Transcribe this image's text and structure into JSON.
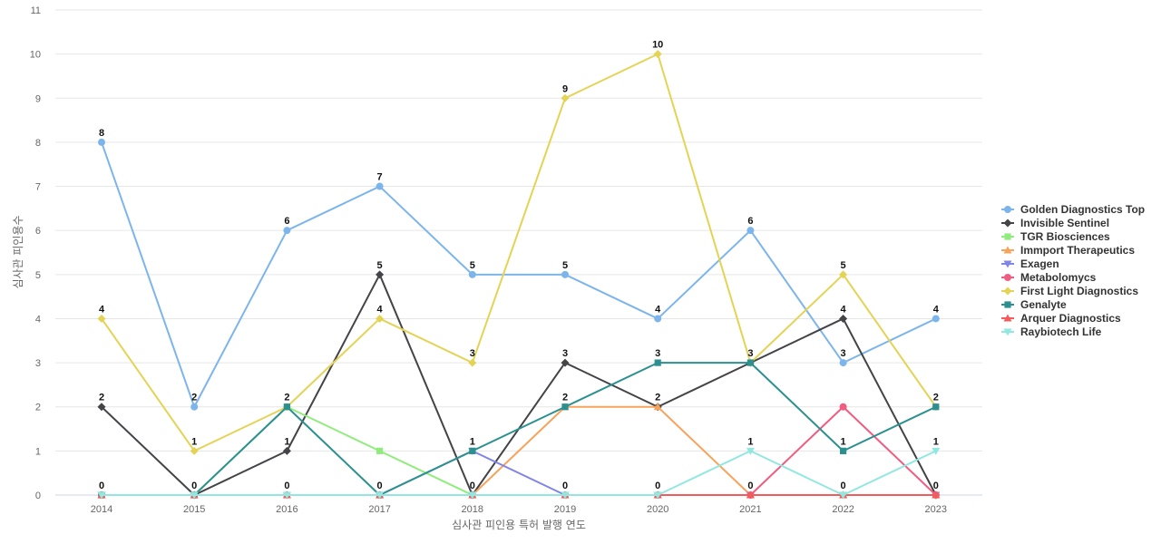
{
  "chart_data": {
    "type": "line",
    "xlabel": "심사관 피인용 특허 발행 연도",
    "ylabel": "심사관 피인용수",
    "x": [
      "2014",
      "2015",
      "2016",
      "2017",
      "2018",
      "2019",
      "2020",
      "2021",
      "2022",
      "2023"
    ],
    "ylim": [
      0,
      11
    ],
    "yticks": [
      0,
      1,
      2,
      3,
      4,
      5,
      6,
      7,
      8,
      9,
      10,
      11
    ],
    "grid": true,
    "legend_position": "right",
    "series": [
      {
        "name": "Golden Diagnostics Top",
        "color": "#7cb5ec",
        "marker": "circle",
        "values": [
          8,
          2,
          6,
          7,
          5,
          5,
          4,
          6,
          3,
          4
        ],
        "labels": true
      },
      {
        "name": "Invisible Sentinel",
        "color": "#434348",
        "marker": "diamond",
        "values": [
          2,
          0,
          1,
          5,
          0,
          3,
          2,
          3,
          4,
          0
        ],
        "labels": true
      },
      {
        "name": "TGR Biosciences",
        "color": "#90ed7d",
        "marker": "square",
        "values": [
          0,
          0,
          2,
          1,
          0,
          0,
          0,
          0,
          0,
          0
        ],
        "labels": false
      },
      {
        "name": "Immport Therapeutics",
        "color": "#f7a35c",
        "marker": "triangle",
        "values": [
          0,
          0,
          0,
          0,
          0,
          2,
          2,
          0,
          0,
          0
        ],
        "labels": false
      },
      {
        "name": "Exagen",
        "color": "#8085e9",
        "marker": "triangle-down",
        "values": [
          0,
          0,
          0,
          0,
          1,
          0,
          0,
          0,
          0,
          0
        ],
        "labels": false
      },
      {
        "name": "Metabolomycs",
        "color": "#f15c80",
        "marker": "circle",
        "values": [
          0,
          0,
          0,
          0,
          0,
          0,
          0,
          0,
          2,
          0
        ],
        "labels": false
      },
      {
        "name": "First Light Diagnostics",
        "color": "#e4d354",
        "marker": "diamond",
        "values": [
          4,
          1,
          2,
          4,
          3,
          9,
          10,
          3,
          5,
          2
        ],
        "labels": true
      },
      {
        "name": "Genalyte",
        "color": "#2b908f",
        "marker": "square",
        "values": [
          0,
          0,
          2,
          0,
          1,
          2,
          3,
          3,
          1,
          2
        ],
        "labels": true
      },
      {
        "name": "Arquer Diagnostics",
        "color": "#f45b5b",
        "marker": "triangle",
        "values": [
          0,
          0,
          0,
          0,
          0,
          0,
          0,
          0,
          0,
          0
        ],
        "labels": true
      },
      {
        "name": "Raybiotech Life",
        "color": "#91e8e1",
        "marker": "triangle-down",
        "values": [
          0,
          0,
          0,
          0,
          0,
          0,
          0,
          1,
          0,
          1
        ],
        "labels": true
      }
    ]
  }
}
